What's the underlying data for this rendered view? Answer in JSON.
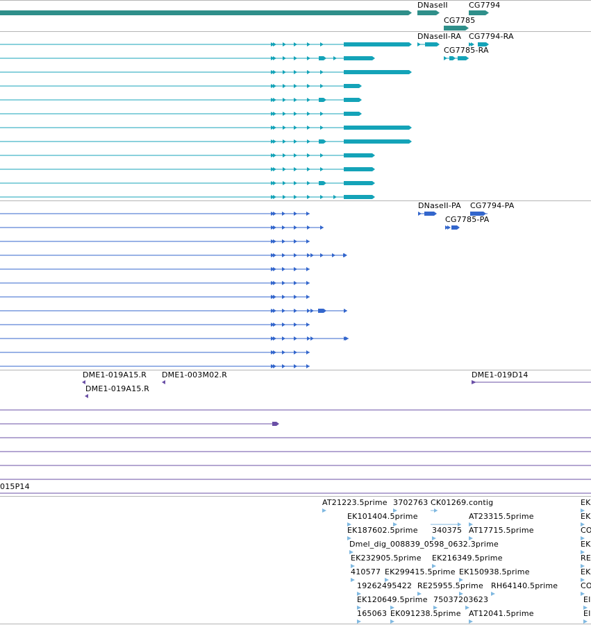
{
  "colors": {
    "gene": "#2f8f8a",
    "transcript": "#14a3b8",
    "protein": "#3366cc",
    "clone": "#6a4fa6",
    "est": "#7fb8e0"
  },
  "tracks": {
    "genes": {
      "labels": [
        "DNaseII",
        "CG7794",
        "CG7785"
      ]
    },
    "transcripts": {
      "labels": [
        "DNaseII-RA",
        "CG7794-RA",
        "CG7785-RA"
      ]
    },
    "proteins": {
      "labels": [
        "DNaseII-PA",
        "CG7794-PA",
        "CG7785-PA"
      ]
    },
    "clones": {
      "labels": [
        "DME1-019A15.R",
        "DME1-003M02.R",
        "DME1-019D14",
        "DME1-019A15.R",
        "015P14"
      ]
    },
    "ests": {
      "labels": [
        "AT21223.5prime",
        "3702763",
        "CK01269.contig",
        "EK",
        "EK101404.5prime",
        "AT23315.5prime",
        "EK",
        "EK187602.5prime",
        "340375",
        "AT17715.5prime",
        "CO",
        "Dmel_dig_008839_0598_0632.3prime",
        "EK",
        "EK232905.5prime",
        "EK216349.5prime",
        "RE",
        "410577",
        "EK299415.5prime",
        "EK150938.5prime",
        "EK",
        "19262495422",
        "RE25955.5prime",
        "75037203623",
        "RH64140.5prime",
        "CO",
        "EK120649.5prime",
        "EI",
        "165063",
        "EK091238.5prime",
        "AT12041.5prime",
        "EI"
      ]
    }
  }
}
